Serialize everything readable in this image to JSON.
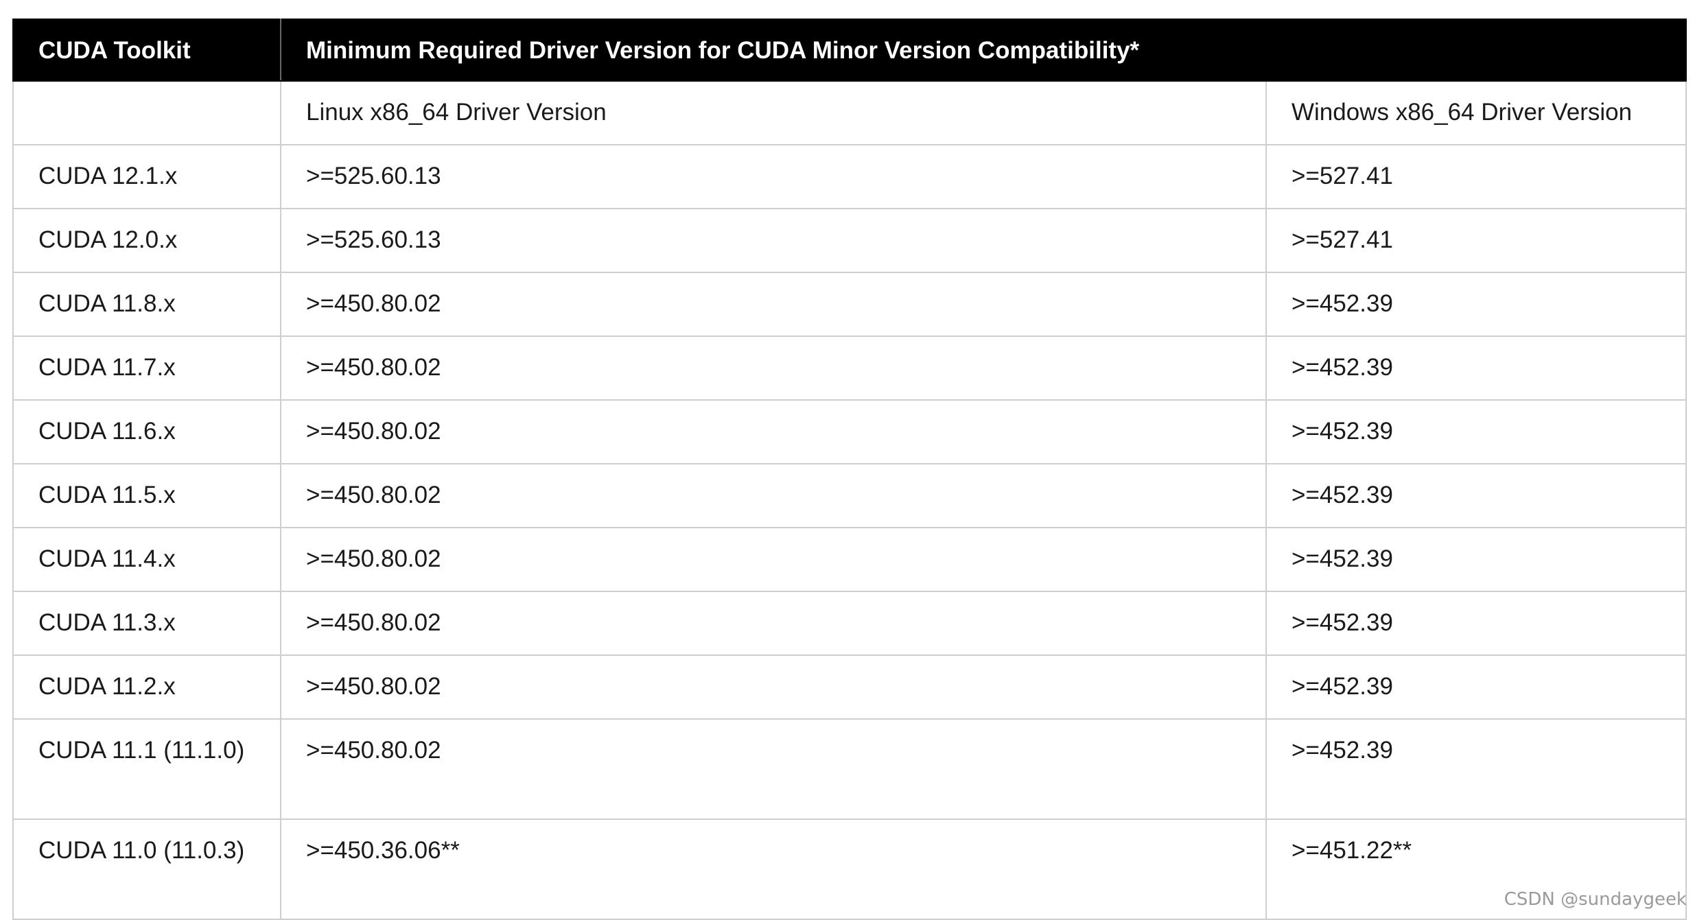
{
  "table": {
    "headers": [
      "CUDA Toolkit",
      "Minimum Required Driver Version for CUDA Minor Version Compatibility*"
    ],
    "subheaders": [
      "",
      "Linux x86_64 Driver Version",
      "Windows x86_64 Driver Version"
    ],
    "rows": [
      [
        "CUDA 12.1.x",
        ">=525.60.13",
        ">=527.41"
      ],
      [
        "CUDA 12.0.x",
        ">=525.60.13",
        ">=527.41"
      ],
      [
        "CUDA 11.8.x",
        ">=450.80.02",
        ">=452.39"
      ],
      [
        "CUDA 11.7.x",
        ">=450.80.02",
        ">=452.39"
      ],
      [
        "CUDA 11.6.x",
        ">=450.80.02",
        ">=452.39"
      ],
      [
        "CUDA 11.5.x",
        ">=450.80.02",
        ">=452.39"
      ],
      [
        "CUDA 11.4.x",
        ">=450.80.02",
        ">=452.39"
      ],
      [
        "CUDA 11.3.x",
        ">=450.80.02",
        ">=452.39"
      ],
      [
        "CUDA 11.2.x",
        ">=450.80.02",
        ">=452.39"
      ],
      [
        "CUDA 11.1 (11.1.0)",
        ">=450.80.02",
        ">=452.39"
      ],
      [
        "CUDA 11.0 (11.0.3)",
        ">=450.36.06**",
        ">=451.22**"
      ]
    ]
  },
  "watermark": "CSDN @sundaygeek"
}
